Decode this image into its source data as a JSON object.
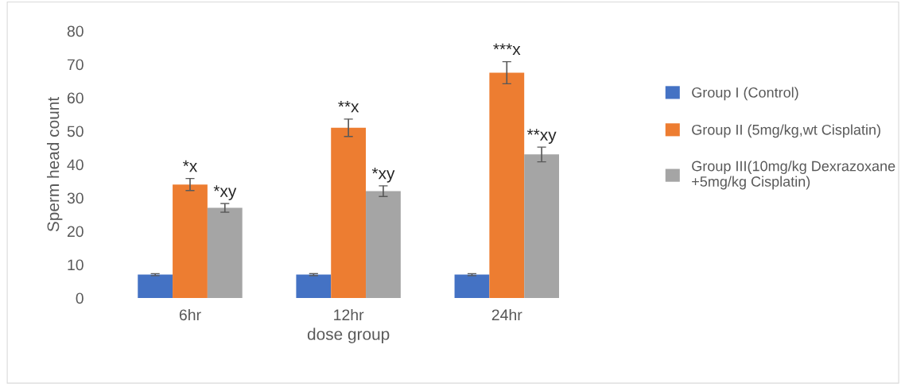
{
  "chart_data": {
    "type": "bar",
    "xlabel": "dose group",
    "ylabel": "Sperm head count",
    "categories": [
      "6hr",
      "12hr",
      "24hr"
    ],
    "series": [
      {
        "name": "Group I (Control)",
        "color": "#4472c4",
        "values": [
          7,
          7,
          7
        ],
        "errors": [
          0.3,
          0.3,
          0.3
        ]
      },
      {
        "name": "Group II (5mg/kg,wt Cisplatin)",
        "color": "#ed7d31",
        "values": [
          34,
          51,
          67.5
        ],
        "errors": [
          1.8,
          2.6,
          3.3
        ],
        "value_labels": [
          "*x",
          "**x",
          "***x"
        ]
      },
      {
        "name": "Group III(10mg/kg Dexrazoxane\n+5mg/kg Cisplatin)",
        "color": "#a5a5a5",
        "values": [
          27,
          32,
          43
        ],
        "errors": [
          1.3,
          1.6,
          2.2
        ],
        "value_labels": [
          "*xy",
          "*xy",
          "**xy"
        ]
      }
    ],
    "ylim": [
      0,
      80
    ],
    "yticks": [
      0,
      10,
      20,
      30,
      40,
      50,
      60,
      70,
      80
    ],
    "grid": false,
    "legend": "right"
  }
}
